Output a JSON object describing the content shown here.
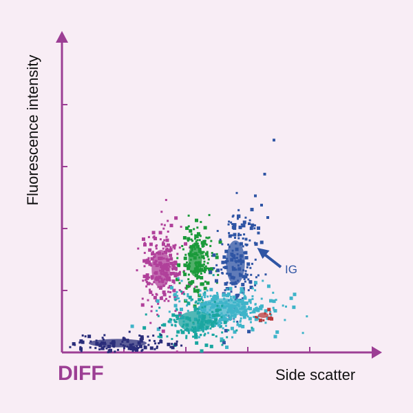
{
  "panel_label": "DIFF",
  "colors": {
    "axis": "#9c3e94",
    "background": "#f8edf5",
    "magenta": "#b0409a",
    "green": "#1a9a3a",
    "blue": "#2f55a4",
    "cyan": "#3fb4c9",
    "teal": "#1aa6a0",
    "navy": "#2a2d7a",
    "red": "#b83a3a"
  },
  "chart_data": {
    "type": "scatter",
    "title": "",
    "xlabel": "Side scatter",
    "ylabel": "Fluorescence intensity",
    "xlim": [
      0,
      5
    ],
    "ylim": [
      0,
      5
    ],
    "xticks": [
      1,
      2,
      3,
      4
    ],
    "yticks": [
      1,
      2,
      3,
      4
    ],
    "grid": false,
    "series": [
      {
        "color": "#b0409a",
        "center": [
          1.6,
          1.35
        ],
        "spread": [
          0.18,
          0.36
        ],
        "count": 230
      },
      {
        "color": "#1a9a3a",
        "center": [
          2.15,
          1.5
        ],
        "spread": [
          0.13,
          0.32
        ],
        "count": 170
      },
      {
        "color": "#2f55a4",
        "center": [
          2.8,
          1.45
        ],
        "spread": [
          0.18,
          0.42
        ],
        "count": 180
      },
      {
        "color": "#3fb4c9",
        "center": [
          2.6,
          0.72
        ],
        "spread": [
          0.45,
          0.18
        ],
        "count": 320
      },
      {
        "color": "#1aa6a0",
        "center": [
          2.15,
          0.5
        ],
        "spread": [
          0.32,
          0.2
        ],
        "count": 140
      },
      {
        "color": "#2a2d7a",
        "center": [
          0.9,
          0.15
        ],
        "spread": [
          0.55,
          0.08
        ],
        "count": 120
      },
      {
        "color": "#b83a3a",
        "center": [
          3.25,
          0.6
        ],
        "spread": [
          0.1,
          0.05
        ],
        "count": 10
      }
    ],
    "annotations": [
      {
        "text": "IG",
        "target": [
          3.15,
          1.6
        ]
      }
    ]
  }
}
